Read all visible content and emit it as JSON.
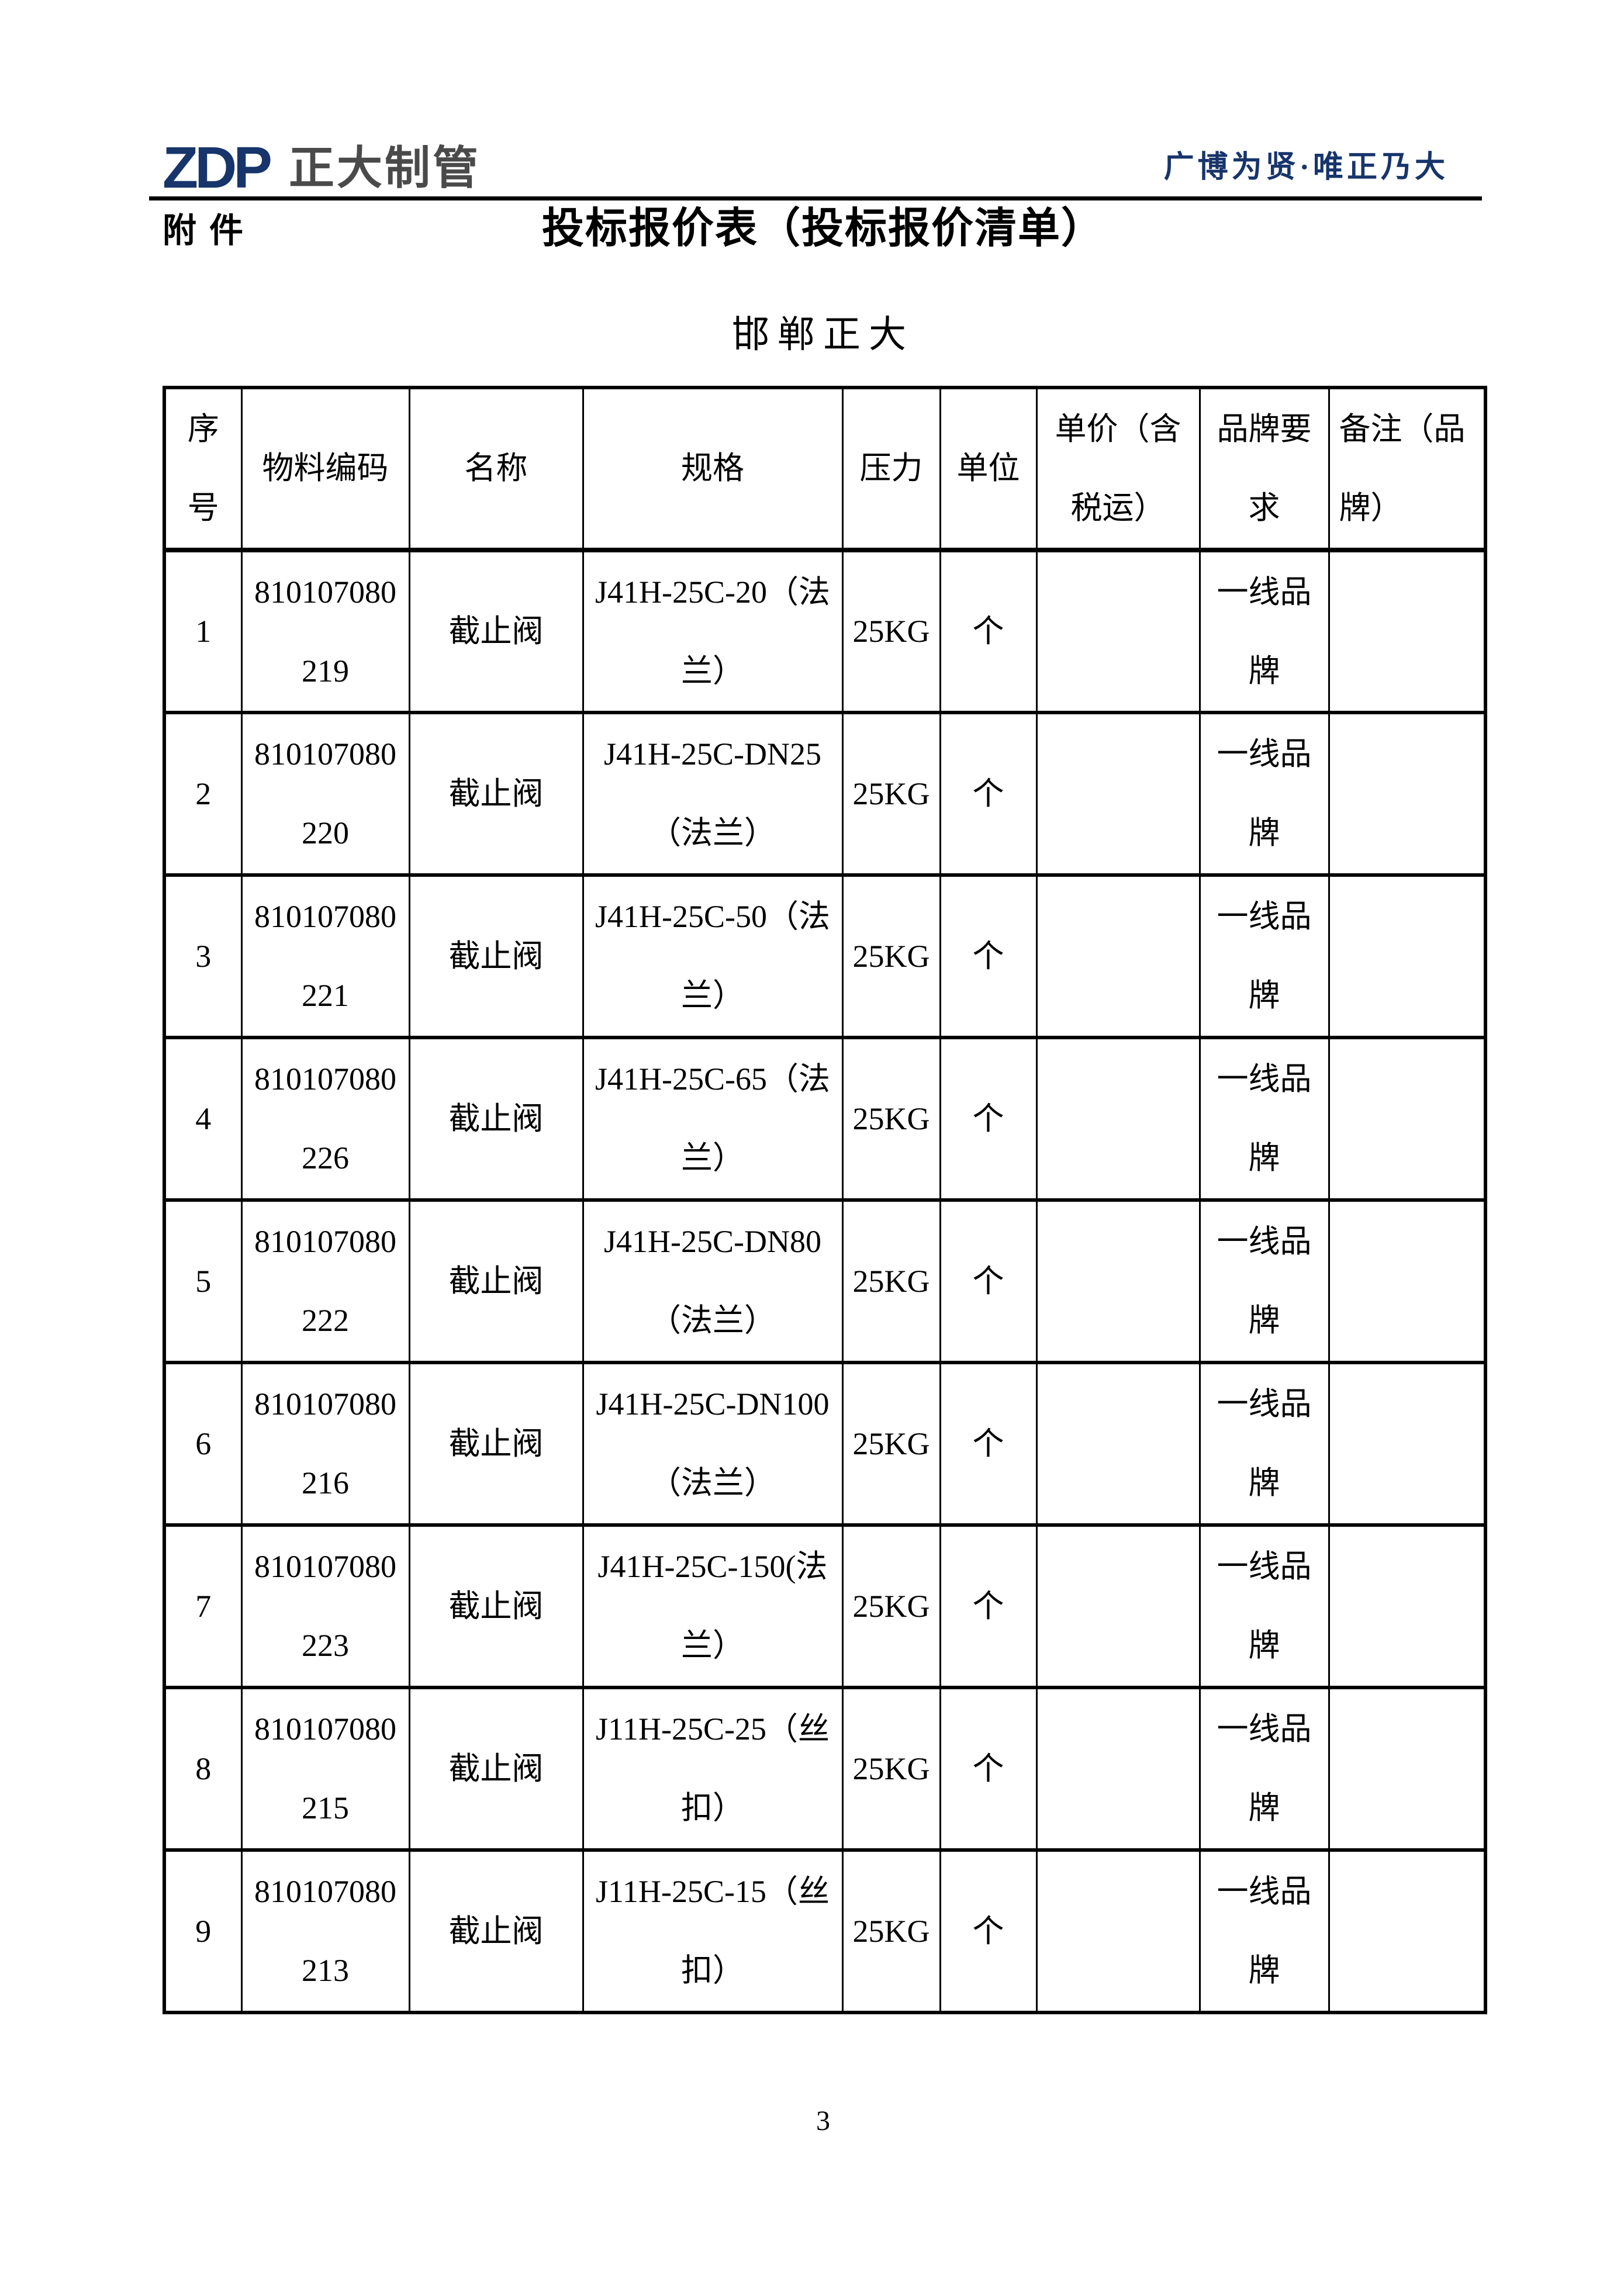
{
  "header": {
    "logo_text": "ZDP",
    "logo_cn": "正大制管",
    "slogan": "广博为贤·唯正乃大",
    "attachment_label": "附件",
    "title": "投标报价表（投标报价清单）",
    "subtitle": "邯郸正大",
    "brand_navy": "#17356b",
    "brand_gray": "#4a4a4a"
  },
  "table": {
    "headers": [
      "序\n号",
      "物料编码",
      "名称",
      "规格",
      "压力",
      "单位",
      "单价（含\n税运）",
      "品牌要\n求",
      "备注（品\n牌）"
    ],
    "rows": [
      [
        "1",
        "810107080\n219",
        "截止阀",
        "J41H-25C-20（法\n兰）",
        "25KG",
        "个",
        "",
        "一线品\n牌",
        ""
      ],
      [
        "2",
        "810107080\n220",
        "截止阀",
        "J41H-25C-DN25\n（法兰）",
        "25KG",
        "个",
        "",
        "一线品\n牌",
        ""
      ],
      [
        "3",
        "810107080\n221",
        "截止阀",
        "J41H-25C-50（法\n兰）",
        "25KG",
        "个",
        "",
        "一线品\n牌",
        ""
      ],
      [
        "4",
        "810107080\n226",
        "截止阀",
        "J41H-25C-65（法\n兰）",
        "25KG",
        "个",
        "",
        "一线品\n牌",
        ""
      ],
      [
        "5",
        "810107080\n222",
        "截止阀",
        "J41H-25C-DN80\n（法兰）",
        "25KG",
        "个",
        "",
        "一线品\n牌",
        ""
      ],
      [
        "6",
        "810107080\n216",
        "截止阀",
        "J41H-25C-DN100\n（法兰）",
        "25KG",
        "个",
        "",
        "一线品\n牌",
        ""
      ],
      [
        "7",
        "810107080\n223",
        "截止阀",
        "J41H-25C-150(法\n兰）",
        "25KG",
        "个",
        "",
        "一线品\n牌",
        ""
      ],
      [
        "8",
        "810107080\n215",
        "截止阀",
        "J11H-25C-25（丝\n扣）",
        "25KG",
        "个",
        "",
        "一线品\n牌",
        ""
      ],
      [
        "9",
        "810107080\n213",
        "截止阀",
        "J11H-25C-15（丝\n扣）",
        "25KG",
        "个",
        "",
        "一线品\n牌",
        ""
      ]
    ]
  },
  "footer": {
    "page_number": "3"
  }
}
